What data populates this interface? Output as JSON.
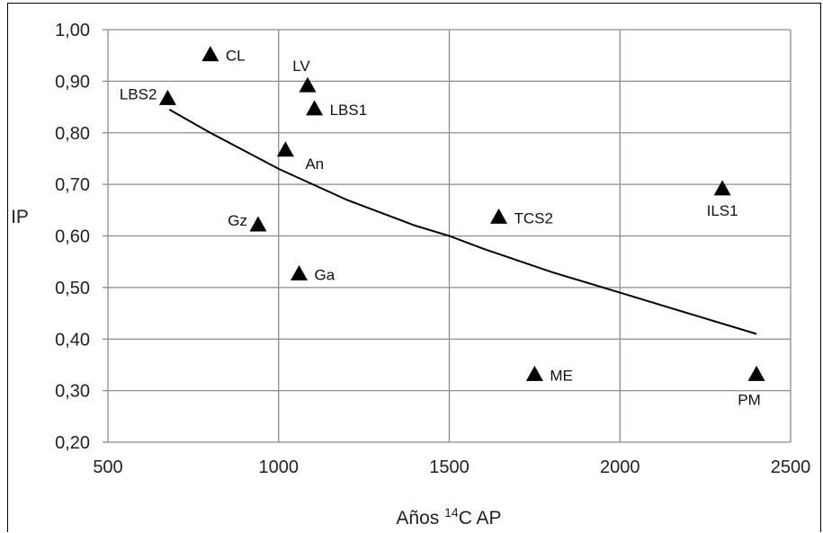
{
  "chart_data": {
    "type": "scatter",
    "ylabel": "IP",
    "xlabel_pre": "Años ",
    "xlabel_sup": "14",
    "xlabel_post": "C AP",
    "xlim": [
      500,
      2500
    ],
    "ylim": [
      0.2,
      1.0
    ],
    "xticks": [
      500,
      1000,
      1500,
      2000,
      2500
    ],
    "xtick_labels": [
      "500",
      "1000",
      "1500",
      "2000",
      "2500"
    ],
    "yticks": [
      0.2,
      0.3,
      0.4,
      0.5,
      0.6,
      0.7,
      0.8,
      0.9,
      1.0
    ],
    "ytick_labels": [
      "0,20",
      "0,30",
      "0,40",
      "0,50",
      "0,60",
      "0,70",
      "0,80",
      "0,90",
      "1,00"
    ],
    "grid": true,
    "marker": "triangle",
    "marker_color": "#000000",
    "points": [
      {
        "label": "CL",
        "x": 800,
        "y": 0.95,
        "label_pos": "right"
      },
      {
        "label": "LV",
        "x": 1085,
        "y": 0.89,
        "label_pos": "above"
      },
      {
        "label": "LBS2",
        "x": 675,
        "y": 0.865,
        "label_pos": "left"
      },
      {
        "label": "LBS1",
        "x": 1105,
        "y": 0.845,
        "label_pos": "right"
      },
      {
        "label": "An",
        "x": 1020,
        "y": 0.765,
        "label_pos": "below-right"
      },
      {
        "label": "Gz",
        "x": 940,
        "y": 0.62,
        "label_pos": "left"
      },
      {
        "label": "Ga",
        "x": 1060,
        "y": 0.525,
        "label_pos": "right"
      },
      {
        "label": "TCS2",
        "x": 1645,
        "y": 0.635,
        "label_pos": "right"
      },
      {
        "label": "ILS1",
        "x": 2300,
        "y": 0.69,
        "label_pos": "below"
      },
      {
        "label": "ME",
        "x": 1750,
        "y": 0.33,
        "label_pos": "right"
      },
      {
        "label": "PM",
        "x": 2400,
        "y": 0.33,
        "label_pos": "below-left"
      }
    ],
    "trendline": {
      "type": "power",
      "x": [
        680,
        800,
        1000,
        1200,
        1400,
        1500,
        1600,
        1800,
        2000,
        2200,
        2400
      ],
      "y": [
        0.845,
        0.8,
        0.73,
        0.67,
        0.62,
        0.6,
        0.575,
        0.53,
        0.49,
        0.45,
        0.41
      ]
    }
  }
}
